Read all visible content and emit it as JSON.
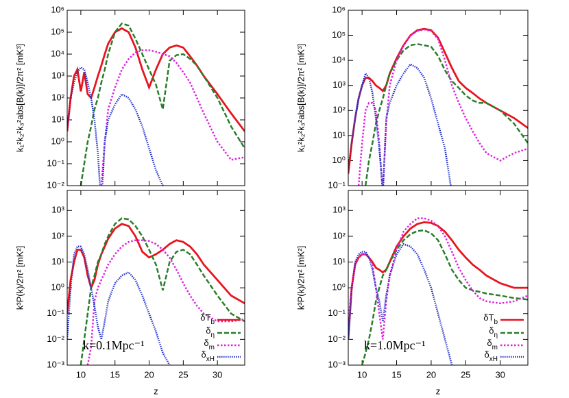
{
  "chart_data": [
    {
      "type": "line",
      "ylabel": "k₁²k₂²k₃²abs[B(k)]/2π² [mK³]",
      "ylog": true,
      "xlim": [
        8,
        34
      ],
      "ylim": [
        0.01,
        1000000
      ],
      "yticks": [
        {
          "value": 0.01,
          "label": "10⁻²"
        },
        {
          "value": 0.1,
          "label": "10⁻¹"
        },
        {
          "value": 1,
          "label": "10⁰"
        },
        {
          "value": 10,
          "label": "10¹"
        },
        {
          "value": 100,
          "label": "10²"
        },
        {
          "value": 1000,
          "label": "10³"
        },
        {
          "value": 10000,
          "label": "10⁴"
        },
        {
          "value": 100000,
          "label": "10⁵"
        },
        {
          "value": 1000000,
          "label": "10⁶"
        }
      ],
      "x": [
        8,
        8.5,
        9,
        9.5,
        10,
        10.5,
        11,
        11.5,
        12,
        12.5,
        13,
        13.5,
        14,
        15,
        16,
        17,
        18,
        19,
        20,
        21,
        22,
        23,
        24,
        25,
        26,
        27,
        28,
        30,
        32,
        34
      ],
      "series": [
        {
          "name": "δT_b",
          "color": "#e8141e",
          "values": [
            3,
            100,
            1000,
            2000,
            200,
            1500,
            150,
            100,
            300,
            1000,
            3000,
            10000,
            30000,
            100000,
            150000,
            100000,
            20000,
            2000,
            300,
            2000,
            10000,
            20000,
            25000,
            20000,
            8000,
            3000,
            1000,
            150,
            20,
            3
          ]
        },
        {
          "name": "δ_η",
          "color": "#2a7d2a",
          "values": [
            null,
            null,
            null,
            null,
            0.01,
            0.1,
            1,
            5,
            30,
            100,
            500,
            2000,
            10000,
            100000,
            250000,
            200000,
            50000,
            10000,
            2000,
            400,
            30,
            5000,
            9000,
            10000,
            6000,
            3000,
            1000,
            100,
            5,
            0.5
          ]
        },
        {
          "name": "δ_m",
          "color": "#e020e0",
          "values": [
            null,
            null,
            null,
            null,
            null,
            null,
            null,
            null,
            null,
            null,
            0.01,
            1,
            30,
            300,
            2000,
            6000,
            12000,
            15000,
            15000,
            13000,
            10000,
            8000,
            4000,
            1500,
            500,
            100,
            20,
            1,
            0.15,
            0.2
          ]
        },
        {
          "name": "δ_xH",
          "color": "#2030c8",
          "values": [
            5,
            100,
            500,
            1500,
            2500,
            2000,
            500,
            100,
            10,
            0.3,
            0.001,
            1,
            10,
            50,
            150,
            100,
            30,
            5,
            0.5,
            0.05,
            0.01,
            0.001,
            null,
            null,
            null,
            null,
            null,
            null,
            null,
            null
          ]
        }
      ]
    },
    {
      "type": "line",
      "xlabel": "z",
      "ylabel": "k³P(k)/2π² [mK²]",
      "ylog": true,
      "xlim": [
        8,
        34
      ],
      "ylim": [
        0.001,
        6000
      ],
      "xticks": [
        10,
        15,
        20,
        25,
        30
      ],
      "yticks": [
        {
          "value": 0.001,
          "label": "10⁻³"
        },
        {
          "value": 0.01,
          "label": "10⁻²"
        },
        {
          "value": 0.1,
          "label": "10⁻¹"
        },
        {
          "value": 1,
          "label": "10⁰"
        },
        {
          "value": 10,
          "label": "10¹"
        },
        {
          "value": 100,
          "label": "10²"
        },
        {
          "value": 1000,
          "label": "10³"
        }
      ],
      "annotation": "k=0.1Mpc⁻¹",
      "legend": "lower right",
      "x": [
        8,
        8.5,
        9,
        9.5,
        10,
        10.5,
        11,
        11.5,
        12,
        12.5,
        13,
        13.5,
        14,
        15,
        16,
        17,
        18,
        19,
        20,
        21,
        22,
        23,
        24,
        25,
        26,
        27,
        28,
        30,
        32,
        34
      ],
      "series": [
        {
          "name": "δT_b",
          "color": "#e8141e",
          "values": [
            0.1,
            2,
            10,
            30,
            30,
            15,
            3,
            1,
            2,
            8,
            20,
            40,
            80,
            200,
            300,
            250,
            100,
            25,
            15,
            20,
            30,
            50,
            70,
            60,
            40,
            20,
            8,
            2,
            0.5,
            0.25
          ]
        },
        {
          "name": "δ_η",
          "color": "#2a7d2a",
          "values": [
            null,
            null,
            null,
            null,
            0.001,
            0.01,
            0.1,
            1,
            3,
            10,
            20,
            50,
            100,
            300,
            500,
            450,
            250,
            100,
            30,
            8,
            0.8,
            10,
            25,
            30,
            20,
            8,
            3,
            0.5,
            0.1,
            0.05
          ]
        },
        {
          "name": "δ_m",
          "color": "#e020e0",
          "values": [
            null,
            null,
            null,
            null,
            null,
            null,
            0.001,
            0.005,
            0.3,
            1,
            2,
            4,
            8,
            20,
            40,
            60,
            70,
            70,
            65,
            50,
            30,
            15,
            5,
            1.5,
            0.5,
            0.2,
            0.1,
            0.05,
            0.05,
            0.06
          ]
        },
        {
          "name": "δ_xH",
          "color": "#2030c8",
          "values": [
            0.01,
            1,
            20,
            40,
            40,
            20,
            5,
            1,
            0.2,
            0.03,
            0.01,
            0.05,
            0.3,
            1.5,
            3,
            4,
            2,
            0.5,
            0.1,
            0.02,
            0.003,
            0.001,
            null,
            null,
            null,
            null,
            null,
            null,
            null,
            null
          ]
        }
      ]
    },
    {
      "type": "line",
      "ylabel": "k₁²k₂²k₃²abs[B(k)]/2π² [mK³]",
      "ylog": true,
      "xlim": [
        8,
        34
      ],
      "ylim": [
        0.1,
        1000000
      ],
      "yticks": [
        {
          "value": 0.1,
          "label": "10⁻¹"
        },
        {
          "value": 1,
          "label": "10⁰"
        },
        {
          "value": 10,
          "label": "10¹"
        },
        {
          "value": 100,
          "label": "10²"
        },
        {
          "value": 1000,
          "label": "10³"
        },
        {
          "value": 10000,
          "label": "10⁴"
        },
        {
          "value": 100000,
          "label": "10⁵"
        },
        {
          "value": 1000000,
          "label": "10⁶"
        }
      ],
      "x": [
        8,
        8.5,
        9,
        9.5,
        10,
        10.5,
        11,
        11.5,
        12,
        12.5,
        13,
        13.5,
        14,
        15,
        16,
        17,
        18,
        19,
        20,
        21,
        22,
        23,
        24,
        25,
        26,
        27,
        28,
        30,
        32,
        34
      ],
      "series": [
        {
          "name": "δT_b",
          "color": "#e8141e",
          "values": [
            0.3,
            5,
            50,
            300,
            1000,
            2000,
            2000,
            1500,
            1000,
            800,
            600,
            1000,
            3000,
            12000,
            40000,
            100000,
            160000,
            180000,
            160000,
            80000,
            20000,
            5000,
            1500,
            800,
            500,
            300,
            200,
            100,
            50,
            20
          ]
        },
        {
          "name": "δ_η",
          "color": "#2a7d2a",
          "values": [
            null,
            null,
            null,
            null,
            null,
            0.1,
            1,
            5,
            30,
            100,
            300,
            1000,
            3000,
            10000,
            25000,
            40000,
            45000,
            40000,
            35000,
            15000,
            4000,
            1500,
            800,
            400,
            250,
            200,
            200,
            100,
            30,
            5
          ]
        },
        {
          "name": "δ_m",
          "color": "#e020e0",
          "values": [
            null,
            null,
            null,
            0.1,
            5,
            100,
            200,
            200,
            100,
            5,
            0.05,
            30,
            1000,
            10000,
            40000,
            100000,
            150000,
            170000,
            150000,
            70000,
            10000,
            1000,
            200,
            50,
            15,
            5,
            2,
            1,
            2,
            3
          ]
        },
        {
          "name": "δ_xH",
          "color": "#2030c8",
          "values": [
            0.5,
            5,
            50,
            300,
            1000,
            3000,
            2000,
            500,
            50,
            3,
            0.05,
            50,
            200,
            1000,
            3000,
            7000,
            5000,
            2000,
            300,
            30,
            3,
            0.05,
            null,
            null,
            null,
            null,
            null,
            null,
            null,
            null
          ]
        }
      ]
    },
    {
      "type": "line",
      "xlabel": "z",
      "ylabel": "k³P(k)/2π² [mK²]",
      "ylog": true,
      "xlim": [
        8,
        34
      ],
      "ylim": [
        0.001,
        6000
      ],
      "xticks": [
        10,
        15,
        20,
        25,
        30
      ],
      "yticks": [
        {
          "value": 0.001,
          "label": "10⁻³"
        },
        {
          "value": 0.01,
          "label": "10⁻²"
        },
        {
          "value": 0.1,
          "label": "10⁻¹"
        },
        {
          "value": 1,
          "label": "10⁰"
        },
        {
          "value": 10,
          "label": "10¹"
        },
        {
          "value": 100,
          "label": "10²"
        },
        {
          "value": 1000,
          "label": "10³"
        }
      ],
      "annotation": "k=1.0Mpc⁻¹",
      "legend": "lower right",
      "x": [
        8,
        8.5,
        9,
        9.5,
        10,
        10.5,
        11,
        11.5,
        12,
        12.5,
        13,
        13.5,
        14,
        15,
        16,
        17,
        18,
        19,
        20,
        21,
        22,
        23,
        24,
        25,
        26,
        27,
        28,
        30,
        32,
        34
      ],
      "series": [
        {
          "name": "δT_b",
          "color": "#e8141e",
          "values": [
            0.01,
            1,
            8,
            15,
            20,
            20,
            15,
            10,
            6,
            5,
            4,
            5,
            10,
            40,
            100,
            200,
            300,
            350,
            330,
            250,
            150,
            70,
            30,
            15,
            8,
            5,
            3,
            1.5,
            1,
            1
          ]
        },
        {
          "name": "δ_η",
          "color": "#2a7d2a",
          "values": [
            null,
            null,
            null,
            null,
            0.001,
            0.003,
            0.01,
            0.05,
            0.3,
            1,
            3,
            5,
            10,
            30,
            70,
            120,
            160,
            170,
            130,
            70,
            20,
            5,
            2,
            1,
            0.8,
            0.7,
            0.6,
            0.5,
            0.4,
            0.35
          ]
        },
        {
          "name": "δ_m",
          "color": "#e020e0",
          "values": [
            0.05,
            1,
            8,
            15,
            20,
            20,
            15,
            8,
            1,
            0.1,
            0.01,
            0.3,
            3,
            30,
            150,
            300,
            500,
            500,
            400,
            250,
            100,
            25,
            6,
            2,
            0.8,
            0.4,
            0.3,
            0.25,
            0.3,
            0.5
          ]
        },
        {
          "name": "δ_xH",
          "color": "#2030c8",
          "values": [
            0.01,
            1,
            10,
            20,
            25,
            25,
            15,
            5,
            1,
            0.3,
            0.05,
            0.5,
            3,
            20,
            50,
            40,
            20,
            5,
            1,
            0.1,
            0.01,
            0.001,
            null,
            null,
            null,
            null,
            null,
            null,
            null,
            null
          ]
        }
      ]
    }
  ]
}
